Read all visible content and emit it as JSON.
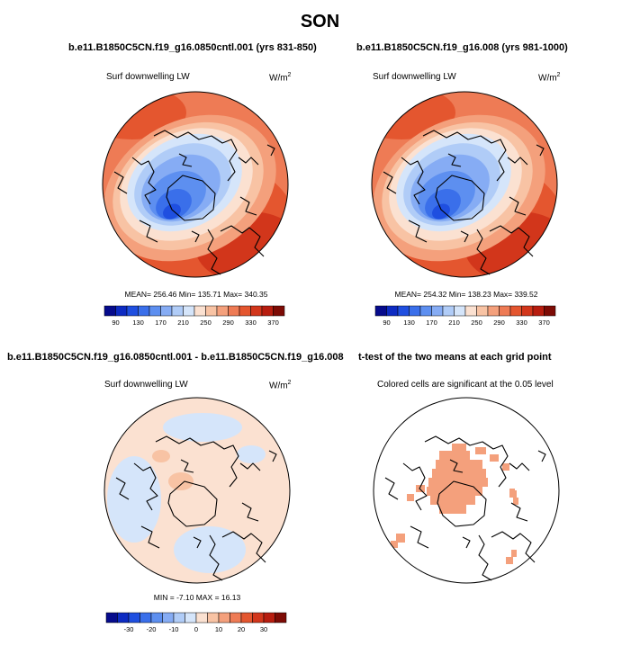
{
  "season": "SON",
  "panels": [
    {
      "title": "b.e11.B1850C5CN.f19_g16.0850cntl.001 (yrs 831-850)",
      "left_label": "Surf downwelling LW",
      "units_base": "W/m",
      "units_exp": "2",
      "stats": {
        "mean": "256.46",
        "min": "135.71",
        "max": "340.35"
      },
      "stats_text": "MEAN= 256.46  Min= 135.71  Max= 340.35"
    },
    {
      "title": "b.e11.B1850C5CN.f19_g16.008 (yrs 981-1000)",
      "left_label": "Surf downwelling LW",
      "units_base": "W/m",
      "units_exp": "2",
      "stats": {
        "mean": "254.32",
        "min": "138.23",
        "max": "339.52"
      },
      "stats_text": "MEAN= 254.32  Min= 138.23  Max= 339.52"
    },
    {
      "title": "b.e11.B1850C5CN.f19_g16.0850cntl.001 - b.e11.B1850C5CN.f19_g16.008",
      "left_label": "Surf downwelling LW",
      "units_base": "W/m",
      "units_exp": "2",
      "stats": {
        "min": "-7.10",
        "max": "16.13"
      },
      "stats_text": "MIN =  -7.10  MAX =  16.13"
    },
    {
      "title": "t-test of the two means at each grid point",
      "left_label": "Colored cells are significant at the 0.05 level"
    }
  ],
  "chart_data": [
    {
      "type": "heatmap",
      "projection": "north polar stereographic",
      "title": "b.e11.B1850C5CN.f19_g16.0850cntl.001 (yrs 831-850)",
      "variable": "Surf downwelling LW",
      "units": "W/m2",
      "mean": 256.46,
      "min": 135.71,
      "max": 340.35,
      "colorbar_levels": [
        90,
        110,
        130,
        150,
        170,
        190,
        210,
        230,
        250,
        270,
        290,
        310,
        330,
        350,
        370
      ],
      "colorbar_tick_labels": [
        "90",
        "130",
        "170",
        "210",
        "250",
        "290",
        "330",
        "370"
      ],
      "colors": [
        "#060b8c",
        "#0d2bc2",
        "#1f4fe0",
        "#3a6fea",
        "#5d8ff0",
        "#86acf4",
        "#b0ccf7",
        "#d5e5fa",
        "#fbe1d1",
        "#f8c3a4",
        "#f4a07c",
        "#ee7b55",
        "#e4562f",
        "#d2361b",
        "#b71d0f",
        "#7d0b05"
      ]
    },
    {
      "type": "heatmap",
      "projection": "north polar stereographic",
      "title": "b.e11.B1850C5CN.f19_g16.008 (yrs 981-1000)",
      "variable": "Surf downwelling LW",
      "units": "W/m2",
      "mean": 254.32,
      "min": 138.23,
      "max": 339.52,
      "colorbar_levels": [
        90,
        110,
        130,
        150,
        170,
        190,
        210,
        230,
        250,
        270,
        290,
        310,
        330,
        350,
        370
      ],
      "colorbar_tick_labels": [
        "90",
        "130",
        "170",
        "210",
        "250",
        "290",
        "330",
        "370"
      ],
      "colors": [
        "#060b8c",
        "#0d2bc2",
        "#1f4fe0",
        "#3a6fea",
        "#5d8ff0",
        "#86acf4",
        "#b0ccf7",
        "#d5e5fa",
        "#fbe1d1",
        "#f8c3a4",
        "#f4a07c",
        "#ee7b55",
        "#e4562f",
        "#d2361b",
        "#b71d0f",
        "#7d0b05"
      ]
    },
    {
      "type": "heatmap",
      "projection": "north polar stereographic",
      "title": "b.e11.B1850C5CN.f19_g16.0850cntl.001 - b.e11.B1850C5CN.f19_g16.008",
      "variable": "Surf downwelling LW",
      "units": "W/m2",
      "min": -7.1,
      "max": 16.13,
      "colorbar_levels": [
        -35,
        -30,
        -25,
        -20,
        -15,
        -10,
        -5,
        0,
        5,
        10,
        15,
        20,
        25,
        30,
        35
      ],
      "colorbar_tick_labels": [
        "-30",
        "-20",
        "-10",
        "0",
        "10",
        "20",
        "30"
      ],
      "colors": [
        "#060b8c",
        "#0d2bc2",
        "#1f4fe0",
        "#3a6fea",
        "#5d8ff0",
        "#86acf4",
        "#b0ccf7",
        "#d5e5fa",
        "#fbe1d1",
        "#f8c3a4",
        "#f4a07c",
        "#ee7b55",
        "#e4562f",
        "#d2361b",
        "#b71d0f",
        "#7d0b05"
      ]
    },
    {
      "type": "heatmap",
      "projection": "north polar stereographic",
      "title": "t-test of the two means at each grid point",
      "subtitle": "Colored cells are significant at the 0.05 level",
      "significance_color": "#f4a07c"
    }
  ],
  "colors": {
    "land_outline": "#000000",
    "significant": "#f4a07c",
    "background": "#ffffff"
  }
}
